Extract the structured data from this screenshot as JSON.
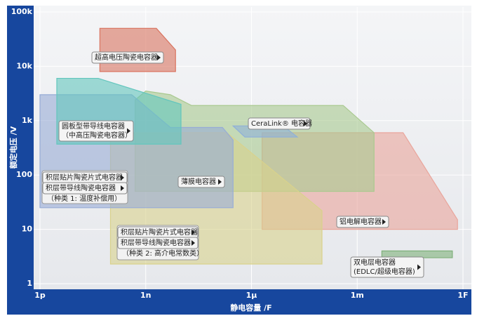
{
  "chart_data": {
    "type": "region",
    "xlabel": "静电容量 /F",
    "ylabel": "额定电压 /V",
    "xscale": "log",
    "yscale": "log",
    "grid": true,
    "xlim": [
      1e-12,
      1
    ],
    "ylim": [
      1,
      100000
    ],
    "xticks": [
      {
        "value": 1e-12,
        "label": "1p"
      },
      {
        "value": 1e-09,
        "label": "1n"
      },
      {
        "value": 1e-06,
        "label": "1µ"
      },
      {
        "value": 0.001,
        "label": "1m"
      },
      {
        "value": 1,
        "label": "1F"
      }
    ],
    "yticks": [
      {
        "value": 1,
        "label": "1"
      },
      {
        "value": 10,
        "label": "10"
      },
      {
        "value": 100,
        "label": "100"
      },
      {
        "value": 1000,
        "label": "1k"
      },
      {
        "value": 10000,
        "label": "10k"
      },
      {
        "value": 100000,
        "label": "100k"
      }
    ],
    "regions": [
      {
        "labels": [
          "铝电解电容器"
        ],
        "color": "#e9a59b",
        "x": [
          2e-06,
          0.02,
          0.7,
          0.7,
          2e-06
        ],
        "y": [
          600,
          600,
          15,
          10,
          10
        ]
      },
      {
        "labels": [
          "薄膜电容器"
        ],
        "color": "#a9c98f",
        "x": [
          5e-10,
          1e-09,
          5e-09,
          2e-08,
          0.0004,
          0.003,
          0.003,
          5e-10
        ],
        "y": [
          2400,
          3500,
          3000,
          1900,
          1900,
          600,
          50,
          50
        ]
      },
      {
        "labels": [
          "积层贴片陶瓷片式电容器",
          "积层带导线陶瓷电容器",
          "（种类 2: 高介电常数类）"
        ],
        "color": "#d9d28c",
        "x": [
          1e-10,
          2e-07,
          0.0001,
          0.0001,
          1e-10
        ],
        "y": [
          600,
          600,
          22,
          2.3,
          2.3
        ]
      },
      {
        "labels": [
          "积层贴片陶瓷片式电容器",
          "积层带导线陶瓷电容器",
          "（种类 1: 温度补偿用）"
        ],
        "color": "#97acd6",
        "x": [
          1e-12,
          4e-10,
          5e-09,
          1.5e-07,
          3e-07,
          3e-07,
          1e-12
        ],
        "y": [
          3000,
          3000,
          750,
          750,
          440,
          25,
          25
        ]
      },
      {
        "labels": [
          "圆板型带导线电容器",
          "（中高压陶瓷电容器）"
        ],
        "color": "#63c6bd",
        "x": [
          3e-12,
          4.5e-11,
          1e-08,
          1e-08,
          3e-12
        ],
        "y": [
          6000,
          6000,
          2000,
          370,
          370
        ]
      },
      {
        "labels": [
          "超高电压陶瓷电容器"
        ],
        "color": "#d9735f",
        "x": [
          5e-11,
          2e-09,
          7e-09,
          7e-09,
          5e-11
        ],
        "y": [
          50000,
          50000,
          20000,
          8000,
          8000
        ]
      },
      {
        "labels": [
          "CeraLink® 电容器"
        ],
        "color": "#8fb0d8",
        "x": [
          3e-07,
          8e-06,
          2e-05,
          6.5e-07
        ],
        "y": [
          800,
          800,
          500,
          500
        ]
      },
      {
        "labels": [
          "双电层电容器",
          "(EDLC/超级电容器)"
        ],
        "color": "#7fb07a",
        "x": [
          0.005,
          0.5,
          0.5,
          0.005
        ],
        "y": [
          4,
          4,
          3,
          3
        ]
      }
    ]
  }
}
